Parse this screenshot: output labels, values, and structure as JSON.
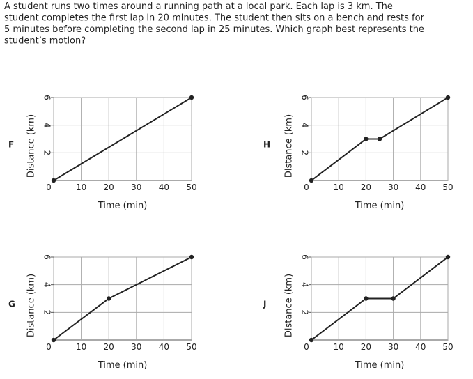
{
  "question_lines": [
    "A student runs two times around a running path at a local park. Each lap is 3 km. The",
    "student completes the first lap in 20 minutes. The student then sits on a bench and rests for",
    "5 minutes before completing the second lap in 25 minutes. Which graph best represents the",
    "student’s motion?"
  ],
  "chart_data": [
    {
      "type": "line",
      "label": "F",
      "xlabel": "Time (min)",
      "ylabel": "Distance (km)",
      "x": [
        0,
        50
      ],
      "values": [
        0,
        6
      ],
      "color": "#222222",
      "xlim": [
        0,
        50
      ],
      "ylim": [
        0,
        6
      ],
      "xticks": [
        0,
        10,
        20,
        30,
        40,
        50
      ],
      "yticks": [
        2,
        4,
        6
      ],
      "grid": true
    },
    {
      "type": "line",
      "label": "H",
      "xlabel": "Time (min)",
      "ylabel": "Distance (km)",
      "x": [
        0,
        20,
        25,
        50
      ],
      "values": [
        0,
        3,
        3,
        6
      ],
      "color": "#222222",
      "xlim": [
        0,
        50
      ],
      "ylim": [
        0,
        6
      ],
      "xticks": [
        0,
        10,
        20,
        30,
        40,
        50
      ],
      "yticks": [
        2,
        4,
        6
      ],
      "grid": true
    },
    {
      "type": "line",
      "label": "G",
      "xlabel": "Time (min)",
      "ylabel": "Distance (km)",
      "x": [
        0,
        20,
        50
      ],
      "values": [
        0,
        3,
        6
      ],
      "color": "#222222",
      "xlim": [
        0,
        50
      ],
      "ylim": [
        0,
        6
      ],
      "xticks": [
        0,
        10,
        20,
        30,
        40,
        50
      ],
      "yticks": [
        2,
        4,
        6
      ],
      "grid": true
    },
    {
      "type": "line",
      "label": "J",
      "xlabel": "Time (min)",
      "ylabel": "Distance (km)",
      "x": [
        0,
        20,
        30,
        50
      ],
      "values": [
        0,
        3,
        3,
        6
      ],
      "color": "#222222",
      "xlim": [
        0,
        50
      ],
      "ylim": [
        0,
        6
      ],
      "xticks": [
        0,
        10,
        20,
        30,
        40,
        50
      ],
      "yticks": [
        2,
        4,
        6
      ],
      "grid": true
    }
  ]
}
